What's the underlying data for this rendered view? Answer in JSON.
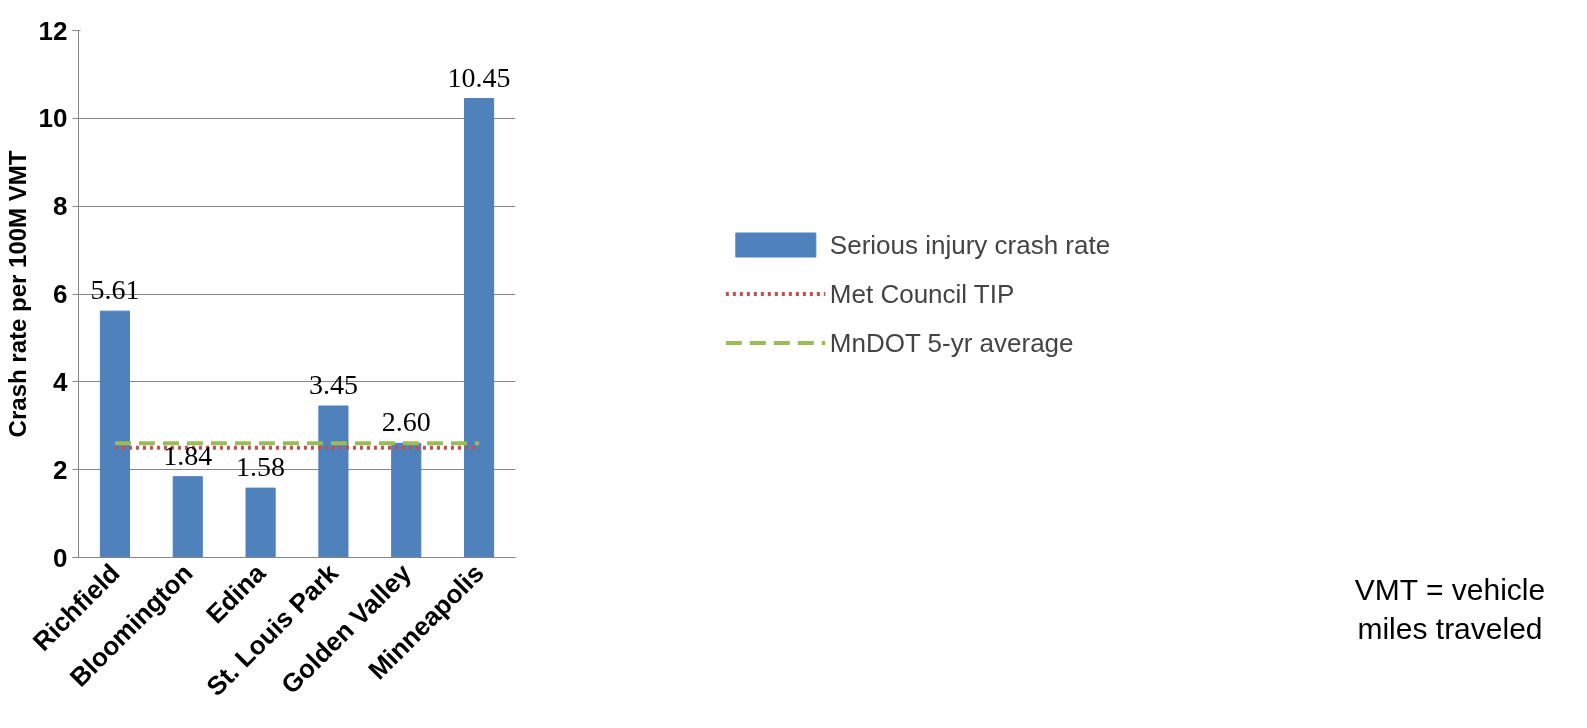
{
  "chart_data": {
    "type": "bar",
    "ylabel": "Crash rate per 100M VMT",
    "categories": [
      "Richfield",
      "Bloomington",
      "Edina",
      "St. Louis Park",
      "Golden Valley",
      "Minneapolis"
    ],
    "series": [
      {
        "name": "Serious injury crash rate",
        "color": "#4f81bd",
        "values": [
          5.61,
          1.84,
          1.58,
          3.45,
          2.6,
          10.45
        ],
        "value_labels": [
          "5.61",
          "1.84",
          "1.58",
          "3.45",
          "2.60",
          "10.45"
        ]
      },
      {
        "name": "Met Council TIP",
        "type": "line",
        "color": "#c0504d",
        "line_style": "dotted",
        "values": [
          2.5,
          2.5,
          2.5,
          2.5,
          2.5,
          2.5
        ]
      },
      {
        "name": "MnDOT 5-yr average",
        "type": "line",
        "color": "#9bbb59",
        "line_style": "dashed",
        "values": [
          2.6,
          2.6,
          2.6,
          2.6,
          2.6,
          2.6
        ]
      }
    ],
    "ylim": [
      0,
      12
    ],
    "yticks": [
      0,
      2,
      4,
      6,
      8,
      10,
      12
    ],
    "grid": "y",
    "legend": "right",
    "annotations": [
      "VMT = vehicle miles traveled"
    ]
  }
}
